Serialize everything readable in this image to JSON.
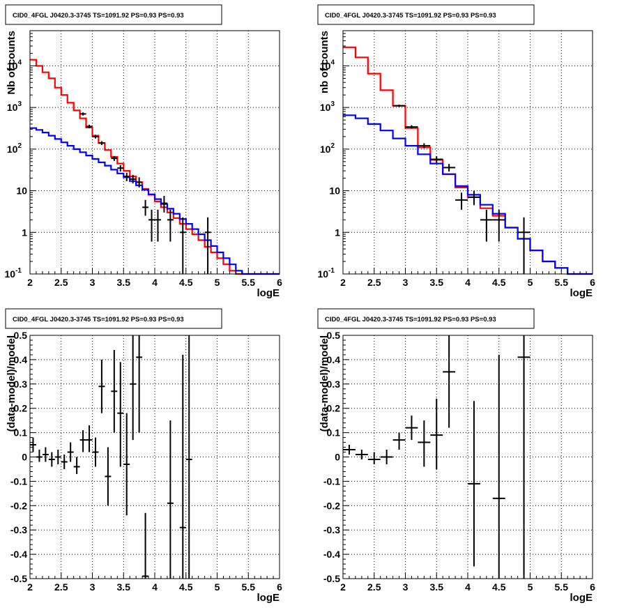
{
  "chart_data": [
    {
      "type": "histogram",
      "title": "CID0_4FGL J0420.3-3745 TS=1091.92 PS=0.93 PS=0.93",
      "xlabel": "logE",
      "ylabel": "Nb of counts",
      "xlim": [
        2,
        6
      ],
      "ylim": [
        0.1,
        70000
      ],
      "yscale": "log",
      "grid": true,
      "x_ticks": [
        "2",
        "2.5",
        "3",
        "3.5",
        "4",
        "4.5",
        "5",
        "5.5",
        "6"
      ],
      "y_ticks": [
        {
          "v": 0.1,
          "base": "10",
          "exp": "-1"
        },
        {
          "v": 1,
          "base": "1",
          "exp": ""
        },
        {
          "v": 10,
          "base": "10",
          "exp": ""
        },
        {
          "v": 100,
          "base": "10",
          "exp": "2"
        },
        {
          "v": 1000,
          "base": "10",
          "exp": "3"
        },
        {
          "v": 10000,
          "base": "10",
          "exp": "4"
        }
      ],
      "series": [
        {
          "color": "#ff0000",
          "style": "step",
          "x_edges": [
            2,
            2.1,
            2.2,
            2.3,
            2.4,
            2.5,
            2.6,
            2.7,
            2.8,
            2.9,
            3,
            3.1,
            3.2,
            3.3,
            3.4,
            3.5,
            3.6,
            3.7,
            3.8,
            3.9,
            4,
            4.1,
            4.2,
            4.3,
            4.4,
            4.5,
            4.6,
            4.7,
            4.8,
            4.9,
            5,
            5.1,
            5.2,
            5.3,
            5.4,
            5.5,
            5.6,
            5.7,
            5.8,
            5.9,
            6
          ],
          "values": [
            14000,
            10000,
            7000,
            5000,
            3000,
            2000,
            1300,
            850,
            550,
            330,
            210,
            140,
            95,
            65,
            45,
            30,
            22,
            16,
            11,
            8,
            5.5,
            4,
            3,
            2.2,
            1.6,
            1.2,
            0.9,
            0.65,
            0.45,
            0.33,
            0.24,
            0.17,
            0.12,
            0.1,
            0.1,
            0.1,
            0.1,
            0.1,
            0.1,
            0.1
          ]
        },
        {
          "color": "#0000ff",
          "style": "step",
          "x_edges": [
            2,
            2.1,
            2.2,
            2.3,
            2.4,
            2.5,
            2.6,
            2.7,
            2.8,
            2.9,
            3,
            3.1,
            3.2,
            3.3,
            3.4,
            3.5,
            3.6,
            3.7,
            3.8,
            3.9,
            4,
            4.1,
            4.2,
            4.3,
            4.4,
            4.5,
            4.6,
            4.7,
            4.8,
            4.9,
            5,
            5.1,
            5.2,
            5.3,
            5.4,
            5.5,
            5.6,
            5.7,
            5.8,
            5.9,
            6
          ],
          "values": [
            320,
            290,
            250,
            210,
            175,
            145,
            120,
            100,
            84,
            70,
            58,
            48,
            40,
            32,
            26,
            21,
            17,
            13.5,
            10.5,
            8.2,
            6.3,
            4.8,
            3.7,
            2.8,
            2.1,
            1.6,
            1.2,
            0.9,
            0.65,
            0.47,
            0.33,
            0.24,
            0.17,
            0.12,
            0.1,
            0.1,
            0.1,
            0.1,
            0.1,
            0.1
          ]
        }
      ],
      "points": [
        {
          "x": 2.85,
          "y": 700,
          "xerr": 0.05,
          "ylo": 640,
          "yhi": 760
        },
        {
          "x": 2.95,
          "y": 350,
          "xerr": 0.05,
          "ylo": 315,
          "yhi": 385
        },
        {
          "x": 3.05,
          "y": 200,
          "xerr": 0.05,
          "ylo": 180,
          "yhi": 220
        },
        {
          "x": 3.15,
          "y": 140,
          "xerr": 0.05,
          "ylo": 125,
          "yhi": 155
        },
        {
          "x": 3.35,
          "y": 60,
          "xerr": 0.05,
          "ylo": 52,
          "yhi": 68
        },
        {
          "x": 3.45,
          "y": 35,
          "xerr": 0.05,
          "ylo": 29,
          "yhi": 41
        },
        {
          "x": 3.55,
          "y": 22,
          "xerr": 0.05,
          "ylo": 17,
          "yhi": 27
        },
        {
          "x": 3.65,
          "y": 19,
          "xerr": 0.05,
          "ylo": 15,
          "yhi": 24
        },
        {
          "x": 3.75,
          "y": 16,
          "xerr": 0.05,
          "ylo": 12,
          "yhi": 21
        },
        {
          "x": 3.85,
          "y": 4,
          "xerr": 0.05,
          "ylo": 2.5,
          "yhi": 6
        },
        {
          "x": 3.95,
          "y": 2,
          "xerr": 0.05,
          "ylo": 0.6,
          "yhi": 3.5
        },
        {
          "x": 4.05,
          "y": 2,
          "xerr": 0.05,
          "ylo": 0.6,
          "yhi": 3.5
        },
        {
          "x": 4.15,
          "y": 5,
          "xerr": 0.05,
          "ylo": 3,
          "yhi": 7.5
        },
        {
          "x": 4.25,
          "y": 2,
          "xerr": 0.05,
          "ylo": 0.6,
          "yhi": 3.5
        },
        {
          "x": 4.45,
          "y": 1,
          "xerr": 0.05,
          "ylo": 0.1,
          "yhi": 2.3
        },
        {
          "x": 4.85,
          "y": 1,
          "xerr": 0.05,
          "ylo": 0.1,
          "yhi": 2.3
        }
      ]
    },
    {
      "type": "histogram",
      "title": "CID0_4FGL J0420.3-3745 TS=1091.92 PS=0.93 PS=0.93",
      "xlabel": "logE",
      "ylabel": "nb of counts",
      "xlim": [
        2,
        6
      ],
      "ylim": [
        0.1,
        70000
      ],
      "yscale": "log",
      "grid": true,
      "x_ticks": [
        "2",
        "2.5",
        "3",
        "3.5",
        "4",
        "4.5",
        "5",
        "5.5",
        "6"
      ],
      "y_ticks": [
        {
          "v": 0.1,
          "base": "10",
          "exp": "-1"
        },
        {
          "v": 1,
          "base": "1",
          "exp": ""
        },
        {
          "v": 10,
          "base": "10",
          "exp": ""
        },
        {
          "v": 100,
          "base": "10",
          "exp": "2"
        },
        {
          "v": 1000,
          "base": "10",
          "exp": "3"
        },
        {
          "v": 10000,
          "base": "10",
          "exp": "4"
        }
      ],
      "series": [
        {
          "color": "#ff0000",
          "style": "step",
          "x_edges": [
            2,
            2.2,
            2.4,
            2.6,
            2.8,
            3,
            3.2,
            3.4,
            3.6,
            3.8,
            4,
            4.2,
            4.4,
            4.6,
            4.8,
            5,
            5.2,
            5.4,
            5.6,
            5.8,
            6
          ],
          "values": [
            28000,
            16000,
            6500,
            2600,
            1100,
            320,
            110,
            55,
            25,
            12,
            7,
            3.8,
            2.5,
            1.3,
            0.7,
            0.37,
            0.2,
            0.14,
            0.1,
            0.1
          ]
        },
        {
          "color": "#0000ff",
          "style": "step",
          "x_edges": [
            2,
            2.2,
            2.4,
            2.6,
            2.8,
            3,
            3.2,
            3.4,
            3.6,
            3.8,
            4,
            4.2,
            4.4,
            4.6,
            4.8,
            5,
            5.2,
            5.4,
            5.6,
            5.8,
            6
          ],
          "values": [
            650,
            550,
            400,
            280,
            180,
            120,
            75,
            45,
            25,
            13,
            8,
            4.6,
            2.8,
            1.3,
            0.7,
            0.37,
            0.2,
            0.14,
            0.1,
            0.1
          ]
        }
      ],
      "points": [
        {
          "x": 2.9,
          "y": 1100,
          "xerr": 0.1,
          "ylo": 1030,
          "yhi": 1170
        },
        {
          "x": 3.1,
          "y": 340,
          "xerr": 0.1,
          "ylo": 310,
          "yhi": 375
        },
        {
          "x": 3.3,
          "y": 120,
          "xerr": 0.1,
          "ylo": 105,
          "yhi": 138
        },
        {
          "x": 3.5,
          "y": 57,
          "xerr": 0.1,
          "ylo": 47,
          "yhi": 68
        },
        {
          "x": 3.7,
          "y": 36,
          "xerr": 0.1,
          "ylo": 29,
          "yhi": 44
        },
        {
          "x": 3.9,
          "y": 6,
          "xerr": 0.1,
          "ylo": 3.5,
          "yhi": 9
        },
        {
          "x": 4.1,
          "y": 7,
          "xerr": 0.1,
          "ylo": 4.5,
          "yhi": 10
        },
        {
          "x": 4.3,
          "y": 2,
          "xerr": 0.1,
          "ylo": 0.6,
          "yhi": 3.5
        },
        {
          "x": 4.5,
          "y": 2,
          "xerr": 0.1,
          "ylo": 0.6,
          "yhi": 3.5
        },
        {
          "x": 4.9,
          "y": 1,
          "xerr": 0.1,
          "ylo": 0.1,
          "yhi": 2.3
        }
      ]
    },
    {
      "type": "scatter",
      "title": "CID0_4FGL J0420.3-3745 TS=1091.92 PS=0.93 PS=0.93",
      "xlabel": "logE",
      "ylabel": "(data-model)/model",
      "xlim": [
        2,
        6
      ],
      "ylim": [
        -0.5,
        0.5
      ],
      "yscale": "linear",
      "grid": true,
      "x_ticks": [
        "2",
        "2.5",
        "3",
        "3.5",
        "4",
        "4.5",
        "5",
        "5.5",
        "6"
      ],
      "y_ticks": [
        "-0.5",
        "-0.4",
        "-0.3",
        "-0.2",
        "-0.1",
        "0",
        "0.1",
        "0.2",
        "0.3",
        "0.4",
        "0.5"
      ],
      "points": [
        {
          "x": 2.05,
          "y": 0.05,
          "xerr": 0.05,
          "ylo": 0.02,
          "yhi": 0.08
        },
        {
          "x": 2.15,
          "y": 0.0,
          "xerr": 0.05,
          "ylo": -0.02,
          "yhi": 0.03
        },
        {
          "x": 2.25,
          "y": 0.01,
          "xerr": 0.05,
          "ylo": -0.02,
          "yhi": 0.04
        },
        {
          "x": 2.35,
          "y": -0.01,
          "xerr": 0.05,
          "ylo": -0.04,
          "yhi": 0.02
        },
        {
          "x": 2.45,
          "y": 0.0,
          "xerr": 0.05,
          "ylo": -0.03,
          "yhi": 0.03
        },
        {
          "x": 2.55,
          "y": -0.02,
          "xerr": 0.05,
          "ylo": -0.05,
          "yhi": 0.01
        },
        {
          "x": 2.65,
          "y": 0.02,
          "xerr": 0.05,
          "ylo": -0.02,
          "yhi": 0.06
        },
        {
          "x": 2.75,
          "y": -0.04,
          "xerr": 0.05,
          "ylo": -0.07,
          "yhi": 0.0
        },
        {
          "x": 2.85,
          "y": 0.07,
          "xerr": 0.05,
          "ylo": 0.02,
          "yhi": 0.11
        },
        {
          "x": 2.95,
          "y": 0.07,
          "xerr": 0.05,
          "ylo": 0.02,
          "yhi": 0.13
        },
        {
          "x": 3.05,
          "y": 0.02,
          "xerr": 0.05,
          "ylo": -0.04,
          "yhi": 0.08
        },
        {
          "x": 3.15,
          "y": 0.29,
          "xerr": 0.05,
          "ylo": 0.18,
          "yhi": 0.4
        },
        {
          "x": 3.25,
          "y": -0.08,
          "xerr": 0.05,
          "ylo": -0.2,
          "yhi": 0.04
        },
        {
          "x": 3.35,
          "y": 0.27,
          "xerr": 0.05,
          "ylo": 0.1,
          "yhi": 0.44
        },
        {
          "x": 3.45,
          "y": 0.18,
          "xerr": 0.05,
          "ylo": -0.04,
          "yhi": 0.39
        },
        {
          "x": 3.55,
          "y": -0.03,
          "xerr": 0.05,
          "ylo": -0.24,
          "yhi": 0.18
        },
        {
          "x": 3.65,
          "y": 0.3,
          "xerr": 0.05,
          "ylo": 0.07,
          "yhi": 0.5
        },
        {
          "x": 3.75,
          "y": 0.41,
          "xerr": 0.05,
          "ylo": 0.1,
          "yhi": 0.5
        },
        {
          "x": 3.85,
          "y": -0.49,
          "xerr": 0.05,
          "ylo": -0.5,
          "yhi": -0.23
        },
        {
          "x": 4.25,
          "y": -0.19,
          "xerr": 0.05,
          "ylo": -0.5,
          "yhi": 0.15
        },
        {
          "x": 4.45,
          "y": -0.29,
          "xerr": 0.05,
          "ylo": -0.5,
          "yhi": 0.42
        },
        {
          "x": 4.55,
          "y": -0.01,
          "xerr": 0.05,
          "ylo": -0.5,
          "yhi": 0.5
        }
      ]
    },
    {
      "type": "scatter",
      "title": "CID0_4FGL J0420.3-3745 TS=1091.92 PS=0.93 PS=0.93",
      "xlabel": "logE",
      "ylabel": "(data-model)/model",
      "xlim": [
        2,
        6
      ],
      "ylim": [
        -0.5,
        0.5
      ],
      "yscale": "linear",
      "grid": true,
      "x_ticks": [
        "2",
        "2.5",
        "3",
        "3.5",
        "4",
        "4.5",
        "5",
        "5.5",
        "6"
      ],
      "y_ticks": [
        "-0.5",
        "-0.4",
        "-0.3",
        "-0.2",
        "-0.1",
        "0",
        "0.1",
        "0.2",
        "0.3",
        "0.4",
        "0.5"
      ],
      "points": [
        {
          "x": 2.1,
          "y": 0.03,
          "xerr": 0.1,
          "ylo": 0.01,
          "yhi": 0.05
        },
        {
          "x": 2.3,
          "y": 0.01,
          "xerr": 0.1,
          "ylo": -0.01,
          "yhi": 0.03
        },
        {
          "x": 2.5,
          "y": -0.01,
          "xerr": 0.1,
          "ylo": -0.03,
          "yhi": 0.02
        },
        {
          "x": 2.7,
          "y": 0.0,
          "xerr": 0.1,
          "ylo": -0.03,
          "yhi": 0.03
        },
        {
          "x": 2.9,
          "y": 0.07,
          "xerr": 0.1,
          "ylo": 0.03,
          "yhi": 0.1
        },
        {
          "x": 3.1,
          "y": 0.12,
          "xerr": 0.1,
          "ylo": 0.07,
          "yhi": 0.17
        },
        {
          "x": 3.3,
          "y": 0.06,
          "xerr": 0.1,
          "ylo": -0.04,
          "yhi": 0.15
        },
        {
          "x": 3.5,
          "y": 0.09,
          "xerr": 0.1,
          "ylo": -0.05,
          "yhi": 0.24
        },
        {
          "x": 3.7,
          "y": 0.35,
          "xerr": 0.1,
          "ylo": 0.12,
          "yhi": 0.5
        },
        {
          "x": 4.1,
          "y": -0.11,
          "xerr": 0.1,
          "ylo": -0.45,
          "yhi": 0.23
        },
        {
          "x": 4.5,
          "y": -0.17,
          "xerr": 0.1,
          "ylo": -0.5,
          "yhi": 0.42
        },
        {
          "x": 4.9,
          "y": 0.41,
          "xerr": 0.1,
          "ylo": -0.5,
          "yhi": 0.5
        }
      ]
    }
  ]
}
